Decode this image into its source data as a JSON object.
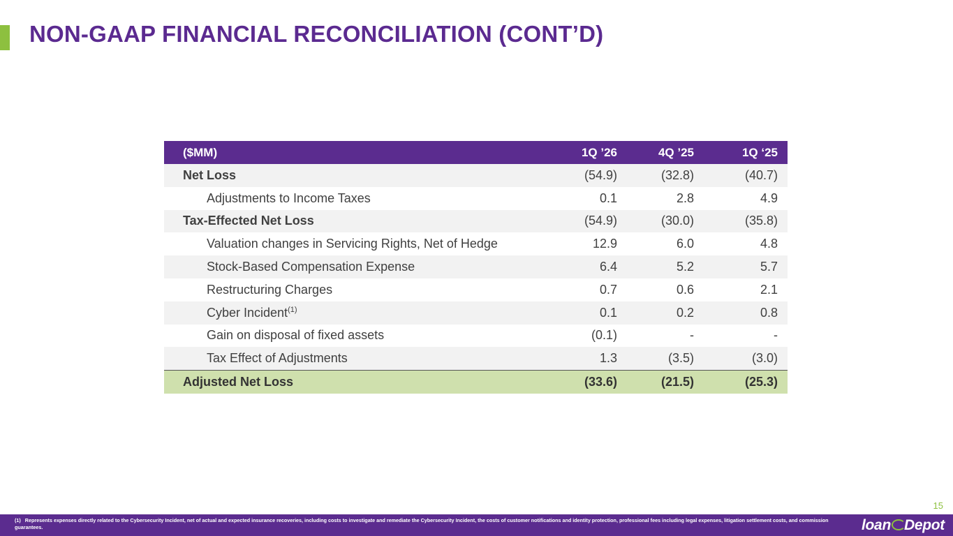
{
  "slide": {
    "title": "NON-GAAP FINANCIAL RECONCILIATION (CONT’D)",
    "page_number": "15",
    "accent_color": "#8dc03f",
    "brand_color": "#5b2c8f"
  },
  "table": {
    "headers": [
      "($MM)",
      "1Q ’26",
      "4Q ’25",
      "1Q ‘25"
    ],
    "rows": [
      {
        "label": "Net Loss",
        "values": [
          "(54.9)",
          "(32.8)",
          "(40.7)"
        ]
      },
      {
        "label": "Adjustments to Income Taxes",
        "values": [
          "0.1",
          "2.8",
          "4.9"
        ]
      },
      {
        "label": "Tax-Effected Net Loss",
        "values": [
          "(54.9)",
          "(30.0)",
          "(35.8)"
        ]
      },
      {
        "label": "Valuation changes in Servicing Rights, Net of Hedge",
        "values": [
          "12.9",
          "6.0",
          "4.8"
        ]
      },
      {
        "label": "Stock-Based Compensation Expense",
        "values": [
          "6.4",
          "5.2",
          "5.7"
        ]
      },
      {
        "label": "Restructuring Charges",
        "values": [
          "0.7",
          "0.6",
          "2.1"
        ]
      },
      {
        "label": "Cyber Incident",
        "footnote_ref": "(1)",
        "values": [
          "0.1",
          "0.2",
          "0.8"
        ]
      },
      {
        "label": "Gain on disposal of fixed assets",
        "values": [
          "(0.1)",
          "-",
          "-"
        ]
      },
      {
        "label": "Tax Effect of Adjustments",
        "values": [
          "1.3",
          "(3.5)",
          "(3.0)"
        ]
      },
      {
        "label": "Adjusted Net Loss",
        "values": [
          "(33.6)",
          "(21.5)",
          "(25.3)"
        ]
      }
    ]
  },
  "footer": {
    "footnote_marker": "(1)",
    "footnote_text": "Represents expenses directly related to the Cybersecurity Incident, net of actual and expected insurance recoveries, including costs to investigate and remediate the Cybersecurity Incident, the costs of customer notifications and identity protection, professional fees including legal expenses, litigation settlement costs, and commission guarantees.",
    "logo_text_left": "loan",
    "logo_text_right": "epot",
    "logo_glyph": "D"
  }
}
